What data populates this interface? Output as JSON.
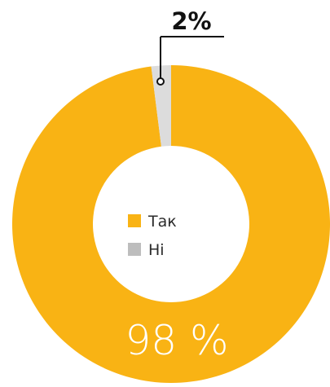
{
  "chart_data": {
    "type": "pie",
    "categories": [
      "Так",
      "Ні"
    ],
    "values": [
      98,
      2
    ],
    "value_labels": [
      "98 %",
      "2%"
    ],
    "colors": [
      "#F9B314",
      "#DCDCDC"
    ],
    "legend": {
      "placement": "center",
      "entries": [
        "Так",
        "Ні"
      ]
    }
  }
}
